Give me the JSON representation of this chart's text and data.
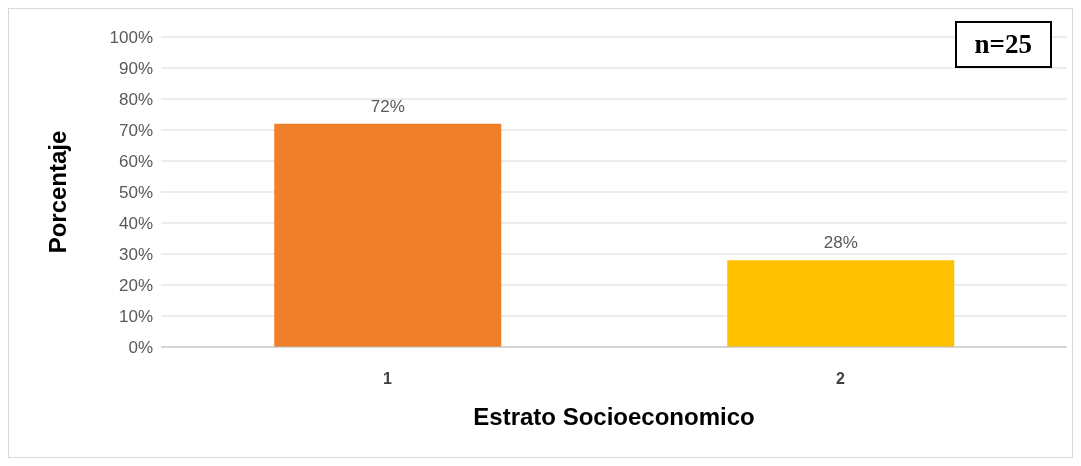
{
  "chart_data": {
    "type": "bar",
    "xlabel": "Estrato Socioeconomico",
    "ylabel": "Porcentaje",
    "categories": [
      "1",
      "2"
    ],
    "values": [
      72,
      28
    ],
    "colors": [
      "#f07f2a",
      "#ffc000"
    ],
    "value_labels": [
      "72%",
      "28%"
    ],
    "ylim": [
      0,
      100
    ],
    "yticks": [
      {
        "value": 0,
        "label": "0%"
      },
      {
        "value": 10,
        "label": "10%"
      },
      {
        "value": 20,
        "label": "20%"
      },
      {
        "value": 30,
        "label": "30%"
      },
      {
        "value": 40,
        "label": "40%"
      },
      {
        "value": 50,
        "label": "50%"
      },
      {
        "value": 60,
        "label": "60%"
      },
      {
        "value": 70,
        "label": "70%"
      },
      {
        "value": 80,
        "label": "80%"
      },
      {
        "value": 90,
        "label": "90%"
      },
      {
        "value": 100,
        "label": "100%"
      }
    ],
    "grid": "y",
    "annotations": [
      "n=25"
    ]
  }
}
